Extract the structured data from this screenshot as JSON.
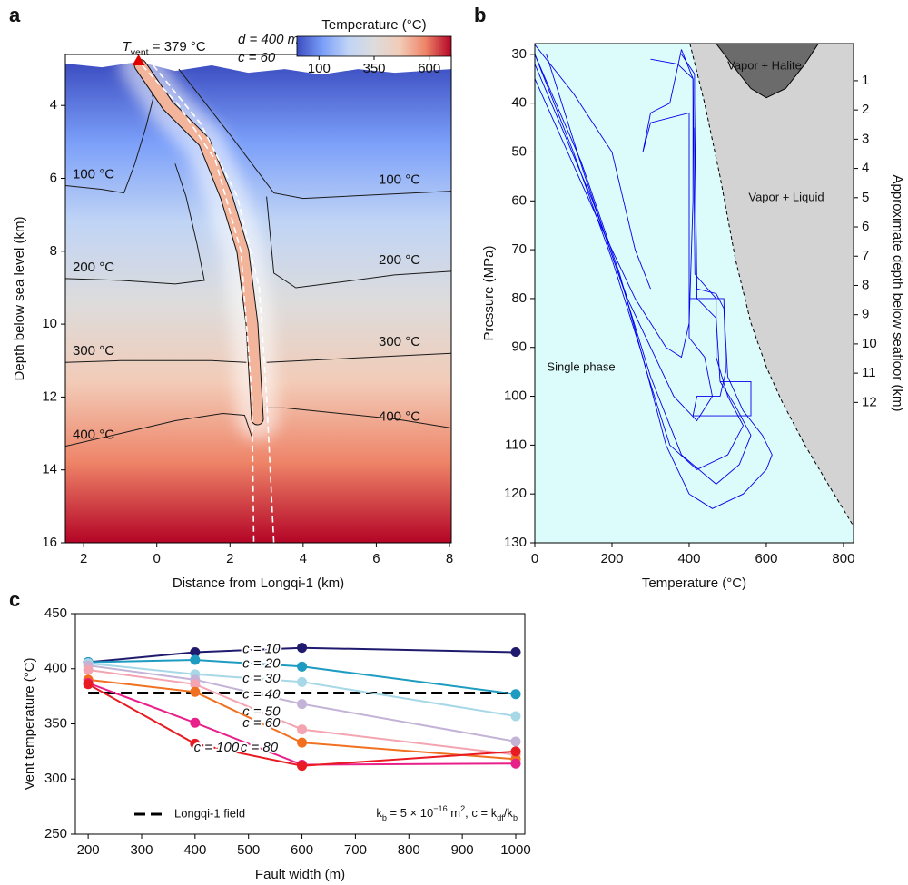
{
  "chart_data": [
    {
      "type": "contour",
      "panel_label": "a",
      "xlabel": "Distance from Longqi-1 (km)",
      "ylabel": "Depth below sea level (km)",
      "xlim": [
        -2.5,
        8.05
      ],
      "ylim": [
        16,
        2.6
      ],
      "xticks": [
        {
          "value": -2,
          "label": "2"
        },
        0,
        2,
        4,
        6,
        8
      ],
      "yticks": [
        4,
        6,
        8,
        10,
        12,
        14,
        16
      ],
      "seafloor": {
        "x": [
          -2.5,
          -1.5,
          -0.5,
          0.5,
          1.5,
          2.5,
          3.5,
          4.5,
          5.5,
          6.5,
          8.05
        ],
        "y": [
          2.85,
          2.95,
          2.8,
          3.05,
          2.9,
          3.1,
          3.0,
          3.15,
          3.0,
          3.1,
          3.0
        ]
      },
      "colorbar": {
        "label": "Temperature (°C)",
        "clim": [
          0,
          700
        ],
        "ticks": [
          100,
          350,
          600
        ],
        "colors": [
          "#3b4cc0",
          "#7b9ff9",
          "#c0d4f5",
          "#dddcdc",
          "#f2cbb7",
          "#ee8468",
          "#b40426"
        ]
      },
      "contours": [
        {
          "level": 100,
          "label": "100 °C",
          "x": [
            -2.5,
            -1.5,
            -0.9,
            -0.6,
            -0.3,
            -0.1,
            -0.3
          ],
          "y": [
            6.2,
            6.3,
            6.4,
            5.6,
            4.6,
            3.8,
            3.0
          ]
        },
        {
          "level": 100,
          "label": "100 °C",
          "x": [
            0.6,
            1.3,
            2.0,
            2.6,
            3.2,
            4.0,
            6.0,
            8.05
          ],
          "y": [
            3.0,
            3.9,
            4.8,
            5.6,
            6.4,
            6.55,
            6.45,
            6.35
          ]
        },
        {
          "level": 200,
          "label": "200 °C",
          "x": [
            -2.5,
            -1.0,
            0.5,
            1.3,
            1.1,
            0.8,
            0.5
          ],
          "y": [
            8.75,
            8.8,
            8.9,
            8.8,
            7.8,
            6.5,
            5.6
          ]
        },
        {
          "level": 200,
          "label": "200 °C",
          "x": [
            3.0,
            3.2,
            3.8,
            5.0,
            6.5,
            8.05
          ],
          "y": [
            6.5,
            8.6,
            9.0,
            8.85,
            8.65,
            8.55
          ]
        },
        {
          "level": 300,
          "label": "300 °C",
          "x": [
            -2.5,
            -1.0,
            0.5,
            1.5,
            2.45
          ],
          "y": [
            11.05,
            11.0,
            11.0,
            11.0,
            11.05
          ]
        },
        {
          "level": 300,
          "label": "300 °C",
          "x": [
            3.0,
            4.0,
            6.0,
            8.05
          ],
          "y": [
            11.05,
            11.0,
            10.9,
            10.8
          ]
        },
        {
          "level": 400,
          "label": "400 °C",
          "x": [
            -2.5,
            -1.0,
            0.5,
            1.8,
            2.4,
            2.6
          ],
          "y": [
            13.35,
            13.0,
            12.65,
            12.45,
            12.5,
            13.1
          ]
        },
        {
          "level": 400,
          "label": "400 °C",
          "x": [
            2.95,
            3.5,
            5.0,
            6.5,
            8.05
          ],
          "y": [
            12.3,
            12.3,
            12.45,
            12.6,
            12.85
          ]
        }
      ],
      "fault_channel": {
        "x": [
          -0.45,
          0.3,
          1.3,
          1.9,
          2.35,
          2.6,
          2.75
        ],
        "y": [
          2.9,
          4.0,
          5.0,
          6.5,
          8.0,
          10.0,
          12.6
        ]
      },
      "fault_boundaries": [
        {
          "x": [
            -0.4,
            0.6,
            1.6,
            2.3,
            2.6,
            2.65
          ],
          "y": [
            2.9,
            4.0,
            5.5,
            8.0,
            12.0,
            16.0
          ]
        },
        {
          "x": [
            -0.1,
            1.2,
            2.2,
            2.8,
            3.0,
            3.2
          ],
          "y": [
            2.9,
            4.5,
            6.5,
            9.0,
            12.0,
            16.0
          ]
        }
      ],
      "vent": {
        "x": -0.5,
        "y": 2.9
      },
      "vent_label": [
        "T",
        "vent",
        " = 379 °C"
      ],
      "annotations": [
        "d = 400 m",
        "c = 60"
      ]
    },
    {
      "type": "phase",
      "panel_label": "b",
      "xlabel": "Temperature (°C)",
      "ylabel": "Pressure (MPa)",
      "y2label": "Approximate depth below seafloor (km)",
      "xlim": [
        0,
        826
      ],
      "ylim": [
        130,
        27.8
      ],
      "y2lim": [
        16.8,
        -0.27
      ],
      "xticks": [
        0,
        200,
        400,
        600,
        800
      ],
      "yticks": [
        30,
        40,
        50,
        60,
        70,
        80,
        90,
        100,
        110,
        120,
        130
      ],
      "y2ticks": [
        1,
        2,
        3,
        4,
        5,
        6,
        7,
        8,
        9,
        10,
        11,
        12
      ],
      "background": "#dcfbfb",
      "single_phase_label": "Single phase",
      "regions": [
        {
          "label": "Vapor + Liquid",
          "color": "#d3d3d3",
          "x": [
            402,
            440,
            480,
            520,
            560,
            600,
            640,
            700,
            760,
            826
          ],
          "y": [
            27.8,
            40,
            55,
            72,
            85,
            94,
            101,
            110,
            118,
            126.6
          ]
        },
        {
          "label": "Vapor + Halite",
          "color": "#6b6b6b",
          "x": [
            470,
            520,
            560,
            600,
            650,
            700,
            735
          ],
          "y": [
            27.8,
            33,
            37,
            38.9,
            37,
            32,
            27.8
          ]
        }
      ],
      "line_color": "#0000ee",
      "paths": [
        {
          "x": [
            0,
            100,
            200,
            280,
            340,
            400,
            460,
            540,
            600,
            615,
            590,
            540,
            500,
            490,
            470,
            420,
            414,
            414,
            380
          ],
          "y": [
            30,
            50,
            72,
            92,
            110,
            120,
            123,
            120,
            115,
            112,
            108,
            103,
            96,
            82,
            79,
            78,
            40,
            34,
            30
          ]
        },
        {
          "x": [
            0,
            120,
            220,
            290,
            350,
            420,
            500,
            540,
            500,
            470,
            470,
            415,
            410,
            380
          ],
          "y": [
            30,
            52,
            75,
            95,
            110,
            115,
            112,
            106,
            100,
            92,
            80,
            75,
            35,
            29
          ]
        },
        {
          "x": [
            0,
            150,
            240,
            300,
            360,
            420,
            460,
            440,
            400,
            400,
            300,
            280,
            300,
            350,
            380
          ],
          "y": [
            32,
            60,
            80,
            90,
            100,
            105,
            100,
            92,
            88,
            42,
            44,
            50,
            42,
            40,
            29
          ]
        },
        {
          "x": [
            0,
            170,
            260,
            300,
            340,
            380,
            400,
            410,
            410,
            370,
            300
          ],
          "y": [
            35,
            65,
            80,
            85,
            90,
            92,
            85,
            60,
            35,
            32,
            31
          ]
        },
        {
          "x": [
            0,
            100,
            200,
            260,
            300
          ],
          "y": [
            28,
            38,
            50,
            70,
            78
          ]
        },
        {
          "x": [
            30,
            130,
            230,
            300,
            380,
            470,
            530,
            560,
            520,
            480,
            470,
            420,
            414
          ],
          "y": [
            30,
            55,
            78,
            96,
            112,
            118,
            114,
            108,
            102,
            97,
            84,
            80,
            45
          ]
        },
        {
          "x": [
            400,
            490,
            495,
            480,
            420,
            410,
            560,
            560,
            480
          ],
          "y": [
            80,
            80,
            95,
            100,
            100,
            104,
            104,
            97,
            97
          ]
        }
      ]
    },
    {
      "type": "line",
      "panel_label": "c",
      "xlabel": "Fault width (m)",
      "ylabel": "Vent temperature (°C)",
      "xlim": [
        176,
        1017
      ],
      "ylim": [
        250,
        450
      ],
      "xticks": [
        200,
        300,
        400,
        500,
        600,
        700,
        800,
        900,
        1000
      ],
      "yticks": [
        250,
        300,
        350,
        400,
        450
      ],
      "x": [
        200,
        400,
        600,
        1000
      ],
      "series": [
        {
          "name": "c = 10",
          "color": "#1f1a6e",
          "values": [
            406,
            415,
            419,
            415
          ]
        },
        {
          "name": "c = 20",
          "color": "#1e9bc0",
          "values": [
            406,
            408,
            402,
            377
          ]
        },
        {
          "name": "c = 30",
          "color": "#a6d8e8",
          "values": [
            405,
            395,
            388,
            357
          ]
        },
        {
          "name": "c = 40",
          "color": "#c3b3d6",
          "values": [
            403,
            390,
            368,
            334
          ]
        },
        {
          "name": "c = 50",
          "color": "#f3a4b0",
          "values": [
            399,
            386,
            345,
            322
          ]
        },
        {
          "name": "c = 60",
          "color": "#f07020",
          "values": [
            390,
            379,
            333,
            318
          ]
        },
        {
          "name": "c = 80",
          "color": "#e8208a",
          "values": [
            387,
            351,
            313,
            314
          ]
        },
        {
          "name": "c = 100",
          "color": "#e81b23",
          "values": [
            386,
            332,
            312,
            325
          ]
        }
      ],
      "reference": {
        "name": "Longqi-1 field",
        "value": 378,
        "color": "#000000"
      },
      "legend": "lower left",
      "annotation": [
        "k",
        "b",
        " = 5 × 10",
        "−16",
        " m",
        "2",
        ", c = k",
        "df",
        "/k",
        "b"
      ]
    }
  ]
}
